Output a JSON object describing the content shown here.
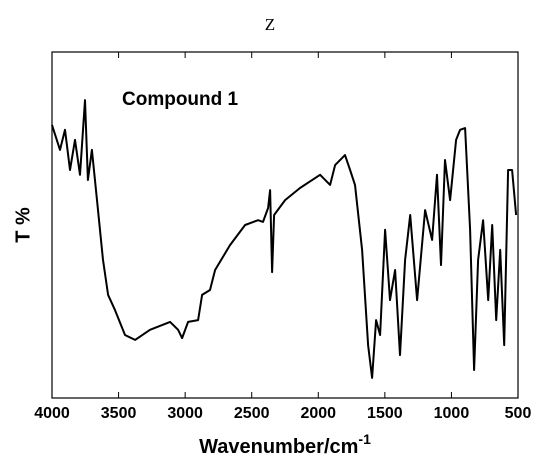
{
  "chart_data": {
    "type": "line",
    "title": "Z",
    "annotation": "Compound 1",
    "x_label": "Wavenumber/cm",
    "x_label_sup": "-1",
    "y_label": "T %",
    "x": [
      4000,
      3940,
      3902,
      3865,
      3827,
      3790,
      3752,
      3730,
      3700,
      3662,
      3617,
      3579,
      3527,
      3452,
      3376,
      3264,
      3113,
      3053,
      3023,
      2978,
      2903,
      2873,
      2813,
      2775,
      2663,
      2550,
      2452,
      2415,
      2377,
      2362,
      2347,
      2332,
      2249,
      2137,
      1986,
      1911,
      1874,
      1799,
      1761,
      1724,
      1671,
      1626,
      1596,
      1566,
      1536,
      1498,
      1461,
      1423,
      1386,
      1348,
      1310,
      1258,
      1198,
      1145,
      1108,
      1078,
      1048,
      1010,
      965,
      935,
      897,
      860,
      830,
      800,
      762,
      724,
      694,
      664,
      634,
      604,
      574,
      544,
      514
    ],
    "series": [
      {
        "color": "#000000",
        "values": [
          78.9,
          71.7,
          77.5,
          65.9,
          74.6,
          64.5,
          86.1,
          63,
          71.7,
          57.2,
          39.9,
          29.8,
          25.4,
          18.2,
          16.8,
          19.7,
          22,
          19.7,
          17.3,
          22,
          22.5,
          29.8,
          31.2,
          37,
          44.2,
          50,
          51.4,
          50.9,
          54.9,
          60.1,
          36.4,
          52.9,
          57.2,
          60.7,
          64.5,
          61.6,
          67.3,
          70.2,
          65.9,
          61.6,
          42.8,
          15.3,
          5.8,
          22.5,
          18.2,
          48.6,
          28.3,
          37,
          12.4,
          39.9,
          52.9,
          28.3,
          54.3,
          45.7,
          64.5,
          38.4,
          68.8,
          57.2,
          74.6,
          77.5,
          78,
          48.6,
          8.1,
          39.9,
          51.4,
          28.3,
          50,
          22.5,
          42.8,
          15.3,
          65.9,
          65.9,
          52.9
        ]
      }
    ],
    "xlim": [
      4000,
      500
    ],
    "ylim": [
      0,
      100
    ],
    "xticks": [
      4000,
      3500,
      3000,
      2500,
      2000,
      1500,
      1000,
      500
    ]
  }
}
